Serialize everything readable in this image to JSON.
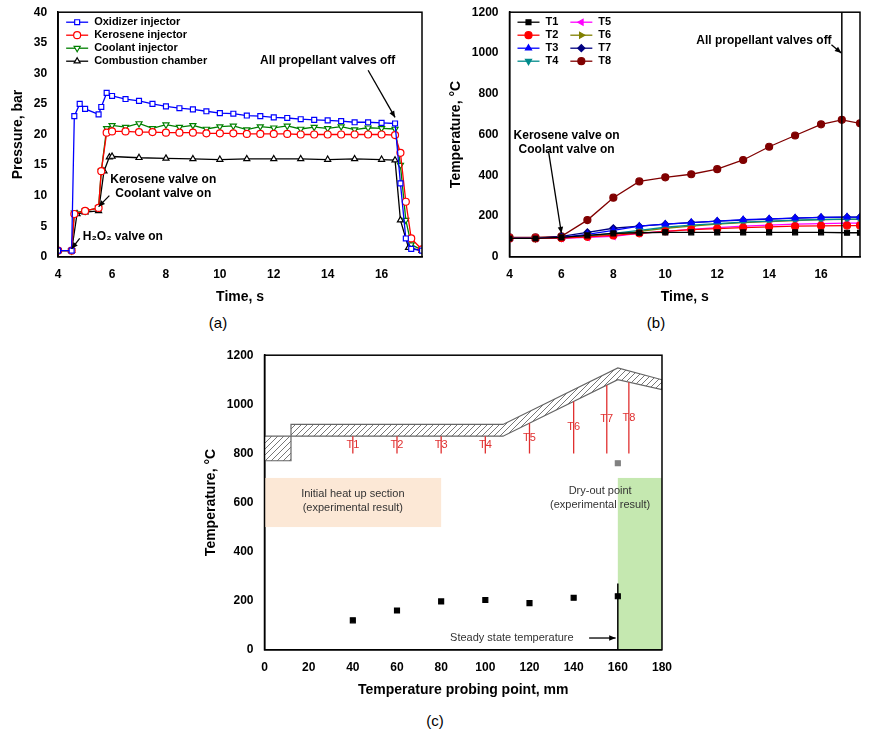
{
  "chart_data": [
    {
      "type": "line",
      "panel_label": "(a)",
      "x_label": "Time, s",
      "y_label": "Pressure, bar",
      "xlim": [
        4,
        17.5
      ],
      "xticks": [
        4,
        6,
        8,
        10,
        12,
        14,
        16
      ],
      "ylim": [
        0,
        40
      ],
      "yticks": [
        0,
        5,
        10,
        15,
        20,
        25,
        30,
        35,
        40
      ],
      "grid": false,
      "legend": "upper left",
      "series": [
        {
          "name": "Oxidizer injector",
          "color": "#0000ff",
          "marker": "square",
          "x": [
            4,
            4.5,
            4.6,
            4.8,
            5,
            5.5,
            5.6,
            5.8,
            6,
            6.5,
            7,
            7.5,
            8,
            8.5,
            9,
            9.5,
            10,
            10.5,
            11,
            11.5,
            12,
            12.5,
            13,
            13.5,
            14,
            14.5,
            15,
            15.5,
            16,
            16.5,
            16.7,
            16.9,
            17.1,
            17.5
          ],
          "values": [
            1,
            1,
            23,
            25,
            24.2,
            23.3,
            24.5,
            26.8,
            26.3,
            25.8,
            25.5,
            25,
            24.6,
            24.3,
            24.1,
            23.8,
            23.5,
            23.4,
            23.1,
            23,
            22.8,
            22.7,
            22.5,
            22.4,
            22.3,
            22.2,
            22,
            22,
            21.9,
            21.8,
            12,
            3,
            1.3,
            1
          ]
        },
        {
          "name": "Kerosene injector",
          "color": "#ff0000",
          "marker": "circle",
          "x": [
            4,
            4.5,
            4.6,
            5,
            5.5,
            5.6,
            5.8,
            6,
            6.5,
            7,
            7.5,
            8,
            8.5,
            9,
            9.5,
            10,
            10.5,
            11,
            11.5,
            12,
            12.5,
            13,
            13.5,
            14,
            14.5,
            15,
            15.5,
            16,
            16.5,
            16.7,
            16.9,
            17.1,
            17.5
          ],
          "values": [
            1,
            1,
            7,
            7.5,
            8,
            14,
            20.3,
            20.5,
            20.5,
            20.4,
            20.4,
            20.3,
            20.3,
            20.3,
            20.2,
            20.2,
            20.2,
            20.1,
            20.1,
            20.1,
            20.1,
            20,
            20,
            20,
            20,
            20,
            20,
            20,
            19.9,
            17,
            9,
            3,
            1.2
          ]
        },
        {
          "name": "Coolant injector",
          "color": "#008000",
          "marker": "triangle_down",
          "x": [
            4,
            4.5,
            4.6,
            5,
            5.5,
            5.6,
            5.8,
            6,
            6.5,
            7,
            7.5,
            8,
            8.5,
            9,
            9.5,
            10,
            10.5,
            11,
            11.5,
            12,
            12.5,
            13,
            13.5,
            14,
            14.5,
            15,
            15.5,
            16,
            16.5,
            16.7,
            16.9,
            17.1,
            17.5
          ],
          "values": [
            1,
            1,
            7.2,
            7.5,
            8,
            14,
            21,
            21.5,
            21.2,
            21.8,
            21,
            21.6,
            21.2,
            21.5,
            20.9,
            21.3,
            21.4,
            20.8,
            21.3,
            21.1,
            21.4,
            20.9,
            21.2,
            21,
            21.3,
            20.8,
            21.1,
            21,
            20.9,
            15,
            6,
            2,
            1.1
          ]
        },
        {
          "name": "Combustion chamber",
          "color": "#000000",
          "marker": "triangle_up",
          "x": [
            4,
            4.5,
            4.7,
            5,
            5.5,
            5.7,
            5.9,
            6,
            7,
            8,
            9,
            10,
            11,
            12,
            13,
            14,
            15,
            16,
            16.5,
            16.7,
            17,
            17.5
          ],
          "values": [
            1,
            1,
            7,
            7.3,
            7.5,
            14,
            16.3,
            16.4,
            16.2,
            16.1,
            16,
            15.9,
            16,
            16,
            16,
            15.9,
            16,
            15.9,
            15.8,
            6,
            1.5,
            1
          ]
        }
      ],
      "annotations": [
        {
          "text": [
            "All propellant valves off"
          ],
          "x": 14.0,
          "y": 32,
          "arrow": [
            [
              15.5,
              30.5
            ],
            [
              16.5,
              22.8
            ]
          ]
        },
        {
          "text": [
            "Kerosene valve on",
            "Coolant valve on"
          ],
          "x": 7.9,
          "y": 11.5,
          "arrow": [
            [
              5.9,
              10
            ],
            [
              5.5,
              8.2
            ]
          ]
        },
        {
          "text": [
            "H₂O₂ valve on"
          ],
          "x": 6.4,
          "y": 3.3,
          "arrow": [
            [
              4.8,
              3
            ],
            [
              4.5,
              1.3
            ]
          ]
        }
      ]
    },
    {
      "type": "line",
      "panel_label": "(b)",
      "x_label": "Time, s",
      "y_label": "Temperature, °C",
      "xlim": [
        4,
        17.5
      ],
      "xticks": [
        4,
        6,
        8,
        10,
        12,
        14,
        16
      ],
      "ylim": [
        0,
        1200
      ],
      "yticks": [
        0,
        200,
        400,
        600,
        800,
        1000,
        1200
      ],
      "grid": false,
      "legend": "upper left",
      "series": [
        {
          "name": "T1",
          "color": "#000000",
          "marker": "square",
          "x": [
            4,
            5,
            6,
            7,
            8,
            9,
            10,
            11,
            12,
            13,
            14,
            15,
            16,
            17,
            17.5
          ],
          "values": [
            90,
            90,
            95,
            105,
            115,
            118,
            120,
            120,
            120,
            120,
            120,
            120,
            120,
            118,
            118
          ]
        },
        {
          "name": "T2",
          "color": "#ff0000",
          "marker": "circle",
          "x": [
            4,
            5,
            6,
            7,
            8,
            9,
            10,
            11,
            12,
            13,
            14,
            15,
            16,
            17,
            17.5
          ],
          "values": [
            90,
            90,
            92,
            98,
            105,
            115,
            125,
            133,
            138,
            143,
            147,
            150,
            152,
            153,
            153
          ]
        },
        {
          "name": "T3",
          "color": "#0000ff",
          "marker": "triangle_up",
          "x": [
            4,
            5,
            6,
            7,
            8,
            9,
            10,
            11,
            12,
            13,
            14,
            15,
            16,
            17,
            17.5
          ],
          "values": [
            90,
            90,
            95,
            110,
            130,
            150,
            160,
            168,
            175,
            182,
            186,
            190,
            193,
            195,
            195
          ]
        },
        {
          "name": "T4",
          "color": "#008b8b",
          "marker": "triangle_down",
          "x": [
            4,
            5,
            6,
            7,
            8,
            9,
            10,
            11,
            12,
            13,
            14,
            15,
            16,
            17,
            17.5
          ],
          "values": [
            90,
            90,
            93,
            102,
            115,
            130,
            145,
            155,
            163,
            170,
            175,
            180,
            183,
            185,
            185
          ]
        },
        {
          "name": "T5",
          "color": "#ff00ff",
          "marker": "triangle_left",
          "x": [
            4,
            5,
            6,
            7,
            8,
            9,
            10,
            11,
            12,
            13,
            14,
            15,
            16,
            17,
            17.5
          ],
          "values": [
            90,
            90,
            90,
            95,
            100,
            115,
            125,
            135,
            143,
            150,
            155,
            160,
            163,
            165,
            165
          ]
        },
        {
          "name": "T6",
          "color": "#808000",
          "marker": "triangle_right",
          "x": [
            4,
            5,
            6,
            7,
            8,
            9,
            10,
            11,
            12,
            13,
            14,
            15,
            16,
            17,
            17.5
          ],
          "values": [
            90,
            90,
            92,
            100,
            110,
            125,
            140,
            150,
            160,
            168,
            173,
            178,
            182,
            184,
            184
          ]
        },
        {
          "name": "T7",
          "color": "#000080",
          "marker": "diamond",
          "x": [
            4,
            5,
            6,
            7,
            8,
            9,
            10,
            11,
            12,
            13,
            14,
            15,
            16,
            17,
            17.5
          ],
          "values": [
            90,
            90,
            100,
            120,
            140,
            150,
            160,
            168,
            175,
            180,
            185,
            190,
            193,
            195,
            195
          ]
        },
        {
          "name": "T8",
          "color": "#800000",
          "marker": "circle",
          "x": [
            4,
            5,
            6,
            7,
            8,
            9,
            10,
            11,
            12,
            13,
            14,
            15,
            16,
            16.8,
            17.5
          ],
          "values": [
            95,
            95,
            100,
            180,
            290,
            370,
            390,
            405,
            430,
            475,
            540,
            595,
            650,
            672,
            655
          ]
        }
      ],
      "vlines": [
        {
          "x": 16.8,
          "y": [
            0,
            1200
          ]
        }
      ],
      "annotations": [
        {
          "text": [
            "All propellant valves off"
          ],
          "x": 13.8,
          "y": 1060,
          "arrow": [
            [
              16.4,
              1040
            ],
            [
              16.78,
              1000
            ]
          ]
        },
        {
          "text": [
            "Kerosene valve on",
            "Coolant valve on"
          ],
          "x": 6.2,
          "y": 560,
          "arrow": [
            [
              5.5,
              520
            ],
            [
              6,
              115
            ]
          ]
        }
      ]
    },
    {
      "type": "scatter",
      "panel_label": "(c)",
      "x_label": "Temperature probing point, mm",
      "y_label": "Temperature, °C",
      "xlim": [
        0,
        180
      ],
      "xticks": [
        0,
        20,
        40,
        60,
        80,
        100,
        120,
        140,
        160,
        180
      ],
      "ylim": [
        0,
        1200
      ],
      "yticks": [
        0,
        200,
        400,
        600,
        800,
        1000,
        1200
      ],
      "grid": false,
      "series": [
        {
          "color": "#000000",
          "marker": "square",
          "x": [
            40,
            60,
            80,
            100,
            120,
            140,
            160
          ],
          "values": [
            120,
            160,
            197,
            203,
            190,
            212,
            218
          ]
        },
        {
          "color": "#808080",
          "marker": "square",
          "x": [
            160
          ],
          "values": [
            760
          ]
        }
      ],
      "regions": [
        {
          "x": [
            0,
            80
          ],
          "y": [
            500,
            700
          ],
          "color": "#fce8d6"
        },
        {
          "x": [
            160,
            180
          ],
          "y": [
            0,
            700
          ],
          "color": "#c5e8b0"
        }
      ],
      "wall": {
        "x": [
          0,
          12,
          12,
          108,
          160,
          180
        ],
        "outer": [
          870,
          870,
          918,
          918,
          1148,
          1100
        ],
        "inner": [
          770,
          770,
          870,
          870,
          1100,
          1060
        ]
      },
      "probes": {
        "labels": [
          "T1",
          "T2",
          "T3",
          "T4",
          "T5",
          "T6",
          "T7",
          "T8"
        ],
        "x": [
          40,
          60,
          80,
          100,
          120,
          140,
          155,
          165
        ],
        "y": 800,
        "color": "#e03030"
      },
      "vlines": [
        {
          "x": 160,
          "y": [
            0,
            270
          ]
        }
      ],
      "annotations": [
        {
          "text": [
            "Initial heat up section",
            "(experimental result)"
          ],
          "x": 40,
          "y": 605
        },
        {
          "text": [
            "Dry-out point",
            "(experimental result)"
          ],
          "x": 152,
          "y": 620
        },
        {
          "text": [
            "Steady state temperature"
          ],
          "x": 112,
          "y": 48,
          "arrow": [
            [
              147,
              48
            ],
            [
              159,
              48
            ]
          ]
        }
      ]
    }
  ]
}
